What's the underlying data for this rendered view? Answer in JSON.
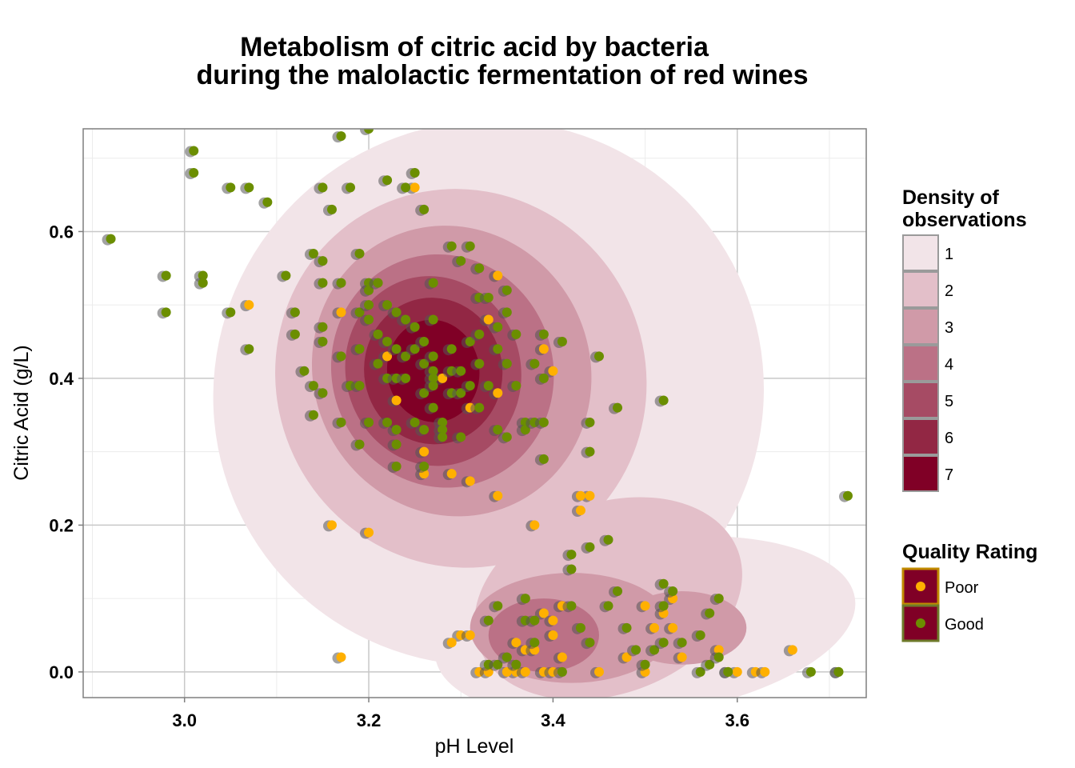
{
  "chart_data": {
    "type": "scatter",
    "title_lines": [
      "Metabolism of citric acid by bacteria",
      "during the malolactic fermentation of red wines"
    ],
    "xlabel": "pH Level",
    "ylabel": "Citric Acid (g/L)",
    "xlim": [
      2.89,
      3.74
    ],
    "ylim": [
      -0.035,
      0.74
    ],
    "x_ticks": [
      {
        "value": 3.0,
        "label": "3.0"
      },
      {
        "value": 3.2,
        "label": "3.2"
      },
      {
        "value": 3.4,
        "label": "3.4"
      },
      {
        "value": 3.6,
        "label": "3.6"
      }
    ],
    "y_ticks": [
      {
        "value": 0.0,
        "label": "0.0"
      },
      {
        "value": 0.2,
        "label": "0.2"
      },
      {
        "value": 0.4,
        "label": "0.4"
      },
      {
        "value": 0.6,
        "label": "0.6"
      }
    ],
    "grid": true,
    "density_legend": {
      "title_lines": [
        "Density of",
        "observations"
      ],
      "levels": [
        {
          "label": "1",
          "color": "#f2e4e8"
        },
        {
          "label": "2",
          "color": "#e3bfc9"
        },
        {
          "label": "3",
          "color": "#d09aa8"
        },
        {
          "label": "4",
          "color": "#bb7186"
        },
        {
          "label": "5",
          "color": "#a64b64"
        },
        {
          "label": "6",
          "color": "#922744"
        },
        {
          "label": "7",
          "color": "#800026"
        }
      ]
    },
    "density_regions": [
      {
        "level": 1,
        "center": [
          3.33,
          0.38
        ],
        "rx": 0.3,
        "ry": 0.37,
        "rotate": -28
      },
      {
        "level": 1,
        "center": [
          3.5,
          0.06
        ],
        "rx": 0.23,
        "ry": 0.12,
        "rotate": -8
      },
      {
        "level": 2,
        "center": [
          3.3,
          0.4
        ],
        "rx": 0.2,
        "ry": 0.26,
        "rotate": -28
      },
      {
        "level": 2,
        "center": [
          3.46,
          0.1
        ],
        "rx": 0.15,
        "ry": 0.13,
        "rotate": -20
      },
      {
        "level": 3,
        "center": [
          3.29,
          0.41
        ],
        "rx": 0.15,
        "ry": 0.2,
        "rotate": -25
      },
      {
        "level": 3,
        "center": [
          3.42,
          0.06
        ],
        "rx": 0.11,
        "ry": 0.075,
        "rotate": 0
      },
      {
        "level": 3,
        "center": [
          3.54,
          0.06
        ],
        "rx": 0.07,
        "ry": 0.05,
        "rotate": 0
      },
      {
        "level": 4,
        "center": [
          3.28,
          0.41
        ],
        "rx": 0.12,
        "ry": 0.16,
        "rotate": -20
      },
      {
        "level": 4,
        "center": [
          3.39,
          0.05
        ],
        "rx": 0.06,
        "ry": 0.05,
        "rotate": 0
      },
      {
        "level": 5,
        "center": [
          3.27,
          0.41
        ],
        "rx": 0.095,
        "ry": 0.13,
        "rotate": -15
      },
      {
        "level": 6,
        "center": [
          3.27,
          0.41
        ],
        "rx": 0.075,
        "ry": 0.1,
        "rotate": -10
      },
      {
        "level": 7,
        "center": [
          3.27,
          0.41
        ],
        "rx": 0.05,
        "ry": 0.07,
        "rotate": -10
      }
    ],
    "quality_legend": {
      "title": "Quality Rating",
      "items": [
        {
          "label": "Poor",
          "color": "#ffb000"
        },
        {
          "label": "Good",
          "color": "#6b8e00"
        }
      ]
    },
    "series": [
      {
        "name": "Poor",
        "color": "#ffb000",
        "points": [
          [
            3.25,
            0.66
          ],
          [
            3.07,
            0.5
          ],
          [
            3.17,
            0.49
          ],
          [
            3.34,
            0.54
          ],
          [
            3.33,
            0.48
          ],
          [
            3.39,
            0.44
          ],
          [
            3.23,
            0.37
          ],
          [
            3.28,
            0.4
          ],
          [
            3.31,
            0.36
          ],
          [
            3.26,
            0.3
          ],
          [
            3.26,
            0.27
          ],
          [
            3.29,
            0.27
          ],
          [
            3.31,
            0.26
          ],
          [
            3.34,
            0.24
          ],
          [
            3.16,
            0.2
          ],
          [
            3.2,
            0.19
          ],
          [
            3.38,
            0.2
          ],
          [
            3.44,
            0.24
          ],
          [
            3.43,
            0.24
          ],
          [
            3.43,
            0.22
          ],
          [
            3.17,
            0.02
          ],
          [
            3.3,
            0.05
          ],
          [
            3.31,
            0.05
          ],
          [
            3.29,
            0.04
          ],
          [
            3.36,
            0.04
          ],
          [
            3.37,
            0.03
          ],
          [
            3.38,
            0.03
          ],
          [
            3.39,
            0.08
          ],
          [
            3.4,
            0.07
          ],
          [
            3.41,
            0.09
          ],
          [
            3.4,
            0.05
          ],
          [
            3.41,
            0.02
          ],
          [
            3.36,
            0.0
          ],
          [
            3.37,
            0.0
          ],
          [
            3.39,
            0.0
          ],
          [
            3.4,
            0.0
          ],
          [
            3.32,
            0.0
          ],
          [
            3.33,
            0.0
          ],
          [
            3.35,
            0.0
          ],
          [
            3.45,
            0.0
          ],
          [
            3.48,
            0.02
          ],
          [
            3.5,
            0.09
          ],
          [
            3.5,
            0.0
          ],
          [
            3.51,
            0.06
          ],
          [
            3.52,
            0.08
          ],
          [
            3.53,
            0.06
          ],
          [
            3.53,
            0.1
          ],
          [
            3.54,
            0.02
          ],
          [
            3.58,
            0.03
          ],
          [
            3.59,
            0.0
          ],
          [
            3.6,
            0.0
          ],
          [
            3.62,
            0.0
          ],
          [
            3.63,
            0.0
          ],
          [
            3.66,
            0.03
          ],
          [
            3.4,
            0.41
          ],
          [
            3.22,
            0.43
          ],
          [
            3.34,
            0.38
          ]
        ]
      },
      {
        "name": "Good",
        "color": "#6b8e00",
        "points": [
          [
            2.92,
            0.59
          ],
          [
            2.98,
            0.54
          ],
          [
            2.98,
            0.49
          ],
          [
            3.01,
            0.71
          ],
          [
            3.01,
            0.68
          ],
          [
            3.02,
            0.54
          ],
          [
            3.02,
            0.53
          ],
          [
            3.05,
            0.66
          ],
          [
            3.05,
            0.49
          ],
          [
            3.07,
            0.66
          ],
          [
            3.07,
            0.44
          ],
          [
            3.09,
            0.64
          ],
          [
            3.11,
            0.54
          ],
          [
            3.12,
            0.49
          ],
          [
            3.12,
            0.46
          ],
          [
            3.13,
            0.41
          ],
          [
            3.14,
            0.57
          ],
          [
            3.14,
            0.39
          ],
          [
            3.14,
            0.35
          ],
          [
            3.15,
            0.66
          ],
          [
            3.15,
            0.56
          ],
          [
            3.15,
            0.53
          ],
          [
            3.15,
            0.47
          ],
          [
            3.15,
            0.45
          ],
          [
            3.15,
            0.38
          ],
          [
            3.16,
            0.63
          ],
          [
            3.17,
            0.73
          ],
          [
            3.17,
            0.53
          ],
          [
            3.17,
            0.43
          ],
          [
            3.17,
            0.34
          ],
          [
            3.18,
            0.66
          ],
          [
            3.18,
            0.39
          ],
          [
            3.19,
            0.57
          ],
          [
            3.19,
            0.49
          ],
          [
            3.19,
            0.44
          ],
          [
            3.19,
            0.39
          ],
          [
            3.19,
            0.31
          ],
          [
            3.2,
            0.74
          ],
          [
            3.2,
            0.53
          ],
          [
            3.2,
            0.52
          ],
          [
            3.2,
            0.5
          ],
          [
            3.2,
            0.48
          ],
          [
            3.2,
            0.34
          ],
          [
            3.21,
            0.53
          ],
          [
            3.21,
            0.46
          ],
          [
            3.21,
            0.42
          ],
          [
            3.22,
            0.67
          ],
          [
            3.22,
            0.5
          ],
          [
            3.22,
            0.45
          ],
          [
            3.22,
            0.4
          ],
          [
            3.22,
            0.34
          ],
          [
            3.23,
            0.49
          ],
          [
            3.23,
            0.44
          ],
          [
            3.23,
            0.4
          ],
          [
            3.23,
            0.33
          ],
          [
            3.23,
            0.31
          ],
          [
            3.23,
            0.28
          ],
          [
            3.24,
            0.66
          ],
          [
            3.24,
            0.48
          ],
          [
            3.24,
            0.43
          ],
          [
            3.24,
            0.4
          ],
          [
            3.25,
            0.68
          ],
          [
            3.25,
            0.47
          ],
          [
            3.25,
            0.44
          ],
          [
            3.25,
            0.34
          ],
          [
            3.26,
            0.63
          ],
          [
            3.26,
            0.45
          ],
          [
            3.26,
            0.42
          ],
          [
            3.26,
            0.38
          ],
          [
            3.26,
            0.33
          ],
          [
            3.26,
            0.28
          ],
          [
            3.27,
            0.53
          ],
          [
            3.27,
            0.48
          ],
          [
            3.27,
            0.43
          ],
          [
            3.27,
            0.41
          ],
          [
            3.27,
            0.4
          ],
          [
            3.27,
            0.39
          ],
          [
            3.27,
            0.36
          ],
          [
            3.28,
            0.34
          ],
          [
            3.28,
            0.33
          ],
          [
            3.28,
            0.32
          ],
          [
            3.29,
            0.58
          ],
          [
            3.29,
            0.44
          ],
          [
            3.29,
            0.41
          ],
          [
            3.29,
            0.38
          ],
          [
            3.3,
            0.56
          ],
          [
            3.3,
            0.41
          ],
          [
            3.3,
            0.38
          ],
          [
            3.3,
            0.32
          ],
          [
            3.31,
            0.58
          ],
          [
            3.31,
            0.45
          ],
          [
            3.31,
            0.39
          ],
          [
            3.32,
            0.55
          ],
          [
            3.32,
            0.51
          ],
          [
            3.32,
            0.46
          ],
          [
            3.32,
            0.42
          ],
          [
            3.32,
            0.36
          ],
          [
            3.33,
            0.51
          ],
          [
            3.33,
            0.39
          ],
          [
            3.34,
            0.47
          ],
          [
            3.34,
            0.44
          ],
          [
            3.34,
            0.33
          ],
          [
            3.35,
            0.52
          ],
          [
            3.35,
            0.49
          ],
          [
            3.35,
            0.42
          ],
          [
            3.35,
            0.32
          ],
          [
            3.36,
            0.46
          ],
          [
            3.36,
            0.39
          ],
          [
            3.37,
            0.34
          ],
          [
            3.37,
            0.33
          ],
          [
            3.38,
            0.42
          ],
          [
            3.38,
            0.34
          ],
          [
            3.39,
            0.46
          ],
          [
            3.39,
            0.4
          ],
          [
            3.39,
            0.34
          ],
          [
            3.39,
            0.29
          ],
          [
            3.41,
            0.45
          ],
          [
            3.42,
            0.16
          ],
          [
            3.42,
            0.14
          ],
          [
            3.44,
            0.34
          ],
          [
            3.44,
            0.3
          ],
          [
            3.44,
            0.17
          ],
          [
            3.45,
            0.43
          ],
          [
            3.46,
            0.18
          ],
          [
            3.46,
            0.09
          ],
          [
            3.47,
            0.36
          ],
          [
            3.52,
            0.37
          ],
          [
            3.72,
            0.24
          ],
          [
            3.33,
            0.07
          ],
          [
            3.34,
            0.09
          ],
          [
            3.37,
            0.1
          ],
          [
            3.37,
            0.07
          ],
          [
            3.38,
            0.07
          ],
          [
            3.38,
            0.04
          ],
          [
            3.33,
            0.01
          ],
          [
            3.34,
            0.01
          ],
          [
            3.35,
            0.02
          ],
          [
            3.36,
            0.01
          ],
          [
            3.41,
            0.0
          ],
          [
            3.42,
            0.09
          ],
          [
            3.43,
            0.06
          ],
          [
            3.44,
            0.04
          ],
          [
            3.47,
            0.11
          ],
          [
            3.48,
            0.06
          ],
          [
            3.49,
            0.03
          ],
          [
            3.5,
            0.01
          ],
          [
            3.51,
            0.03
          ],
          [
            3.52,
            0.12
          ],
          [
            3.52,
            0.09
          ],
          [
            3.52,
            0.04
          ],
          [
            3.53,
            0.11
          ],
          [
            3.54,
            0.04
          ],
          [
            3.56,
            0.05
          ],
          [
            3.56,
            0.0
          ],
          [
            3.57,
            0.08
          ],
          [
            3.57,
            0.01
          ],
          [
            3.58,
            0.1
          ],
          [
            3.58,
            0.02
          ],
          [
            3.59,
            0.0
          ],
          [
            3.68,
            0.0
          ],
          [
            3.71,
            0.0
          ],
          [
            3.71,
            0.0
          ]
        ]
      }
    ]
  }
}
